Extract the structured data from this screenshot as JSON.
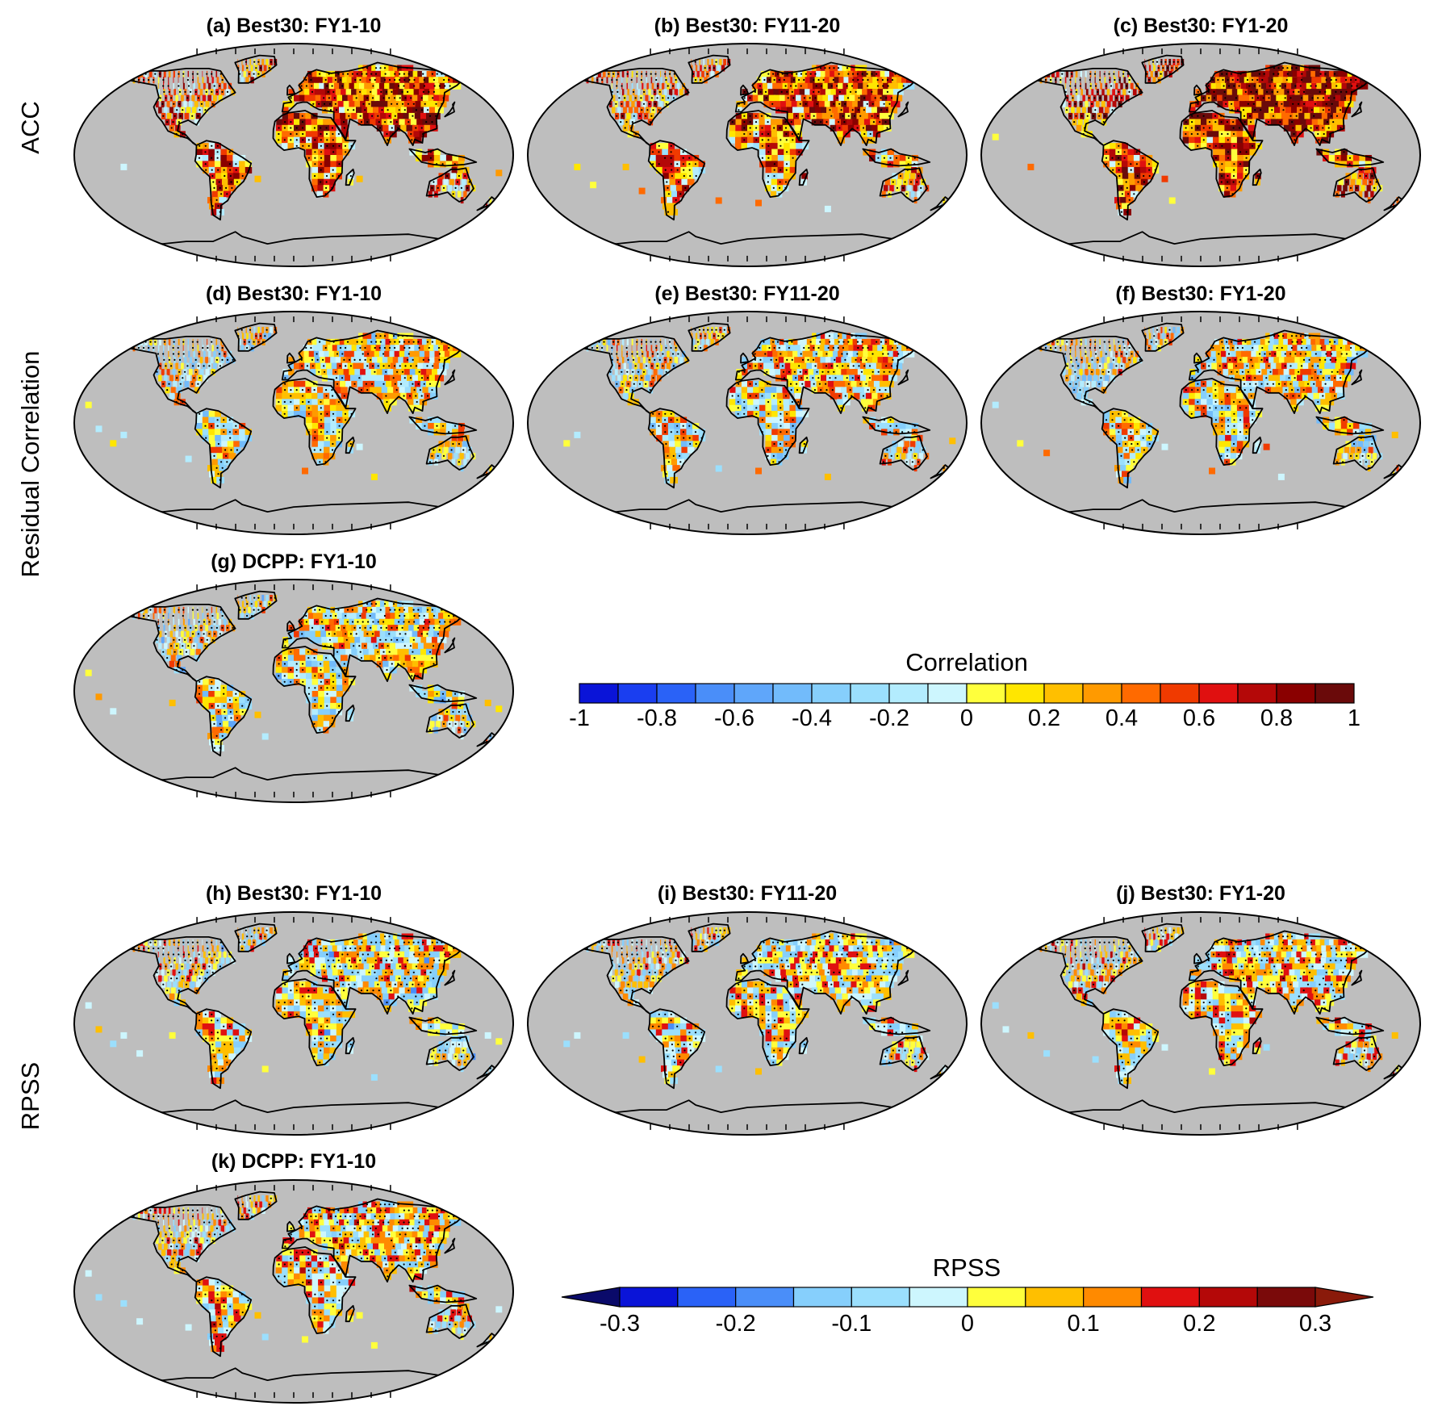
{
  "row_labels": {
    "acc": "ACC",
    "residual": "Residual Correlation",
    "rpss": "RPSS"
  },
  "panels": [
    {
      "id": "a",
      "title": "(a) Best30: FY1-10"
    },
    {
      "id": "b",
      "title": "(b) Best30: FY11-20"
    },
    {
      "id": "c",
      "title": "(c) Best30: FY1-20"
    },
    {
      "id": "d",
      "title": "(d) Best30: FY1-10"
    },
    {
      "id": "e",
      "title": "(e) Best30: FY11-20"
    },
    {
      "id": "f",
      "title": "(f) Best30: FY1-20"
    },
    {
      "id": "g",
      "title": "(g) DCPP: FY1-10"
    },
    {
      "id": "h",
      "title": "(h) Best30: FY1-10"
    },
    {
      "id": "i",
      "title": "(i) Best30: FY11-20"
    },
    {
      "id": "j",
      "title": "(j) Best30: FY1-20"
    },
    {
      "id": "k",
      "title": "(k) DCPP: FY1-10"
    }
  ],
  "colorbars": {
    "correlation": {
      "title": "Correlation",
      "ticks": [
        "-1",
        "-0.8",
        "-0.6",
        "-0.4",
        "-0.2",
        "0",
        "0.2",
        "0.4",
        "0.6",
        "0.8",
        "1"
      ],
      "colors": [
        "#0a14d8",
        "#1a3ef0",
        "#2a62f7",
        "#4a8ef9",
        "#5fa6fa",
        "#72bbfb",
        "#86cffc",
        "#9bdffd",
        "#b3ecfe",
        "#cdf6fe",
        "#ffff3c",
        "#ffe600",
        "#ffbf00",
        "#ff9a00",
        "#ff6a00",
        "#f03a00",
        "#e01010",
        "#b40808",
        "#8a0000",
        "#6a0a0a"
      ]
    },
    "rpss": {
      "title": "RPSS",
      "ticks": [
        "-0.3",
        "-0.2",
        "-0.1",
        "0",
        "0.1",
        "0.2",
        "0.3"
      ],
      "colors": [
        "#0a14d8",
        "#2a62f7",
        "#4a8ef9",
        "#86cffc",
        "#9bdffd",
        "#cdf6fe",
        "#ffff3c",
        "#ffbf00",
        "#ff8a00",
        "#e01010",
        "#b40808",
        "#7a0a0a"
      ],
      "low_extend": "#0a0a6a",
      "high_extend": "#8a1a0a"
    }
  },
  "map_style": {
    "ocean_fill": "#bebebe",
    "coast_color": "#000000"
  }
}
